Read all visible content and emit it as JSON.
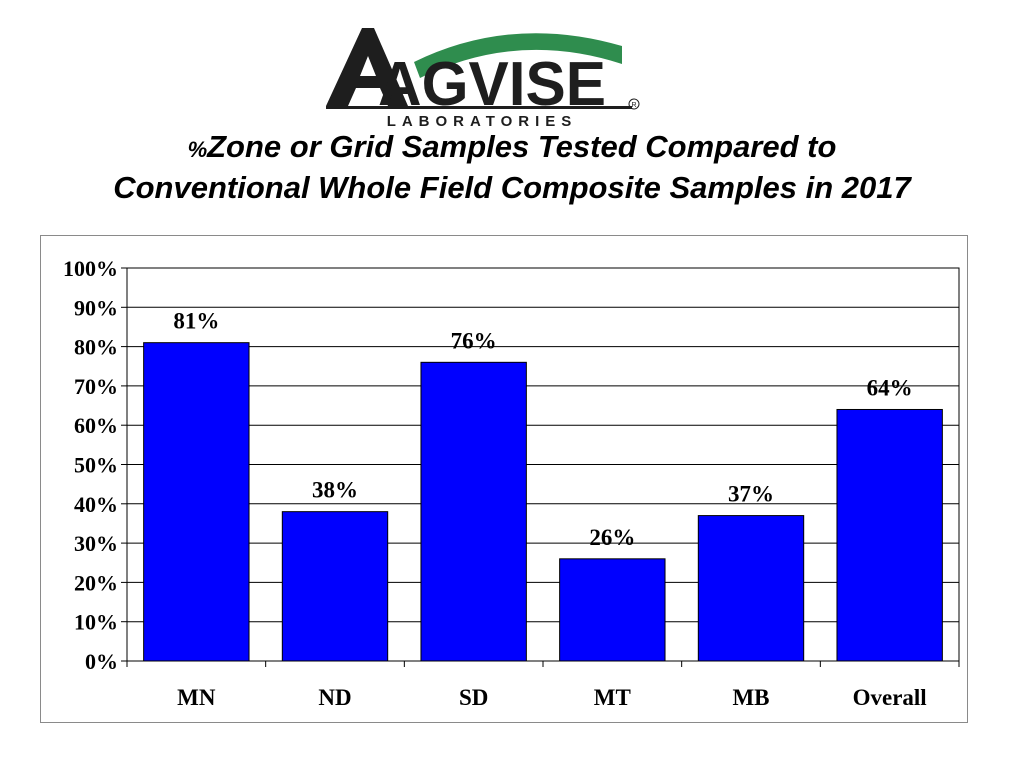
{
  "logo": {
    "wordmark": "AGVISE",
    "subtitle": "LABORATORIES",
    "mark_text": "R",
    "colors": {
      "text": "#1e1e1e",
      "accent": "#2f8d4e"
    }
  },
  "title": {
    "prefix": "%",
    "line1": "Zone or Grid Samples Tested Compared to",
    "line2": "Conventional Whole Field Composite Samples in 2017"
  },
  "chart_data": {
    "type": "bar",
    "categories": [
      "MN",
      "ND",
      "SD",
      "MT",
      "MB",
      "Overall"
    ],
    "values": [
      81,
      38,
      76,
      26,
      37,
      64
    ],
    "data_labels": [
      "81%",
      "38%",
      "76%",
      "26%",
      "37%",
      "64%"
    ],
    "yticks": [
      "0%",
      "10%",
      "20%",
      "30%",
      "40%",
      "50%",
      "60%",
      "70%",
      "80%",
      "90%",
      "100%"
    ],
    "ylim": [
      0,
      100
    ],
    "ystep": 10,
    "grid": true,
    "bar_color": "#0000ff",
    "bar_edge_color": "#000000"
  }
}
